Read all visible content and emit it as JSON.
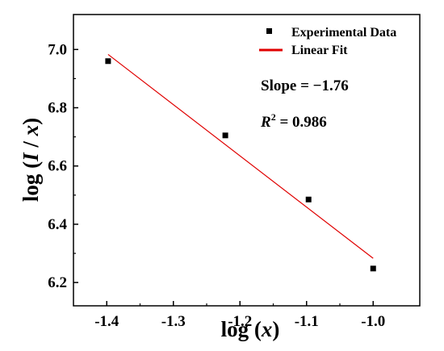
{
  "chart_data": {
    "type": "scatter",
    "xlabel_parts": [
      "log (",
      "x",
      ")"
    ],
    "ylabel_parts": [
      "log (",
      "I",
      " / ",
      "x",
      ")"
    ],
    "xlim": [
      -1.45,
      -0.93
    ],
    "ylim": [
      6.12,
      7.12
    ],
    "xticks": [
      -1.4,
      -1.3,
      -1.2,
      -1.1,
      -1.0
    ],
    "xtick_labels": [
      "-1.4",
      "-1.3",
      "-1.2",
      "-1.1",
      "-1.0"
    ],
    "yticks": [
      6.2,
      6.4,
      6.6,
      6.8,
      7.0
    ],
    "ytick_labels": [
      "6.2",
      "6.4",
      "6.6",
      "6.8",
      "7.0"
    ],
    "grid": false,
    "legend_position": "top-right",
    "series": [
      {
        "name": "Experimental Data",
        "type": "scatter",
        "marker": "square",
        "color": "#000000",
        "x": [
          -1.398,
          -1.222,
          -1.097,
          -1.0
        ],
        "y": [
          6.96,
          6.705,
          6.485,
          6.248
        ]
      },
      {
        "name": "Linear Fit",
        "type": "line",
        "color": "#e00000",
        "x": [
          -1.398,
          -1.0
        ],
        "y": [
          6.983,
          6.283
        ]
      }
    ],
    "annotations": {
      "slope": "Slope = −1.76",
      "r2_prefix": "R",
      "r2_exp": "2",
      "r2_value": " = 0.986"
    }
  }
}
